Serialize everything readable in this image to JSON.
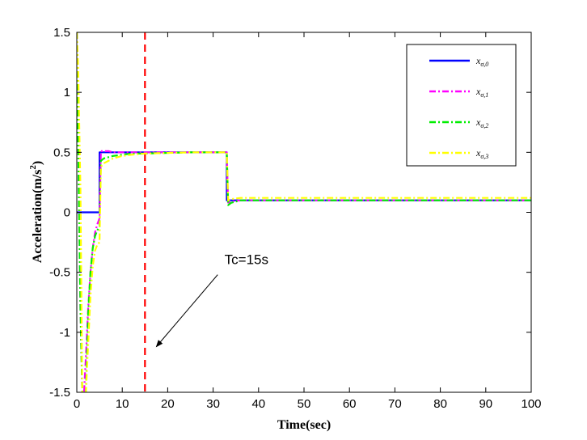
{
  "chart_data": {
    "type": "line",
    "xlabel": "Time(sec)",
    "ylabel": "Acceleration(m/s",
    "ylabel_superscript": "2",
    "ylabel_close": ")",
    "xlim": [
      0,
      100
    ],
    "ylim": [
      -1.5,
      1.5
    ],
    "x_ticks": [
      0,
      10,
      20,
      30,
      40,
      50,
      60,
      70,
      80,
      90,
      100
    ],
    "x_tick_labels": [
      "0",
      "10",
      "20",
      "30",
      "40",
      "50",
      "60",
      "70",
      "80",
      "90",
      "100"
    ],
    "y_ticks": [
      -1.5,
      -1,
      -0.5,
      0,
      0.5,
      1,
      1.5
    ],
    "y_tick_labels": [
      "-1.5",
      "-1",
      "-0.5",
      "0",
      "0.5",
      "1",
      "1.5"
    ],
    "grid": false,
    "legend_position": "top-right",
    "series": [
      {
        "name": "x",
        "subscript": "σ,0",
        "color": "#0000ff",
        "dash": "solid",
        "x": [
          0,
          5,
          5,
          33,
          33,
          100
        ],
        "y": [
          0,
          0,
          0.5,
          0.5,
          0.1,
          0.1
        ]
      },
      {
        "name": "x",
        "subscript": "σ,1",
        "color": "#ff00ff",
        "dash": "dashdot",
        "x": [
          0,
          0.3,
          0.8,
          1.2,
          1.6,
          2.0,
          2.5,
          3.0,
          3.5,
          4.0,
          4.5,
          5.0,
          5.3,
          6,
          7,
          8,
          10,
          12,
          15,
          20,
          33,
          33.3,
          34,
          36,
          40,
          100
        ],
        "y": [
          1.5,
          0.6,
          -0.8,
          -1.5,
          -1.5,
          -1.2,
          -0.8,
          -0.5,
          -0.3,
          -0.17,
          -0.1,
          -0.05,
          0.51,
          0.51,
          0.51,
          0.5,
          0.5,
          0.5,
          0.5,
          0.5,
          0.5,
          0.08,
          0.09,
          0.1,
          0.1,
          0.1
        ]
      },
      {
        "name": "x",
        "subscript": "σ,2",
        "color": "#00ee00",
        "dash": "dashdot",
        "x": [
          0,
          0.3,
          0.8,
          1.2,
          1.6,
          2.0,
          2.5,
          3.0,
          3.5,
          4.0,
          4.5,
          5.0,
          5.3,
          6,
          7,
          8,
          10,
          12,
          15,
          20,
          25,
          33,
          33.3,
          34,
          36,
          40,
          100
        ],
        "y": [
          1.5,
          0.6,
          -0.8,
          -1.5,
          -1.5,
          -1.5,
          -0.85,
          -0.5,
          -0.3,
          -0.2,
          -0.15,
          -0.12,
          0.43,
          0.45,
          0.46,
          0.47,
          0.48,
          0.49,
          0.49,
          0.495,
          0.5,
          0.5,
          0.06,
          0.08,
          0.1,
          0.1,
          0.1
        ]
      },
      {
        "name": "x",
        "subscript": "σ,3",
        "color": "#ffff00",
        "dash": "dashdot",
        "x": [
          0,
          0.3,
          0.8,
          1.2,
          1.6,
          2.0,
          2.5,
          3.0,
          3.5,
          4.0,
          4.5,
          5.0,
          5.3,
          6,
          7,
          8,
          10,
          12,
          15,
          20,
          25,
          33,
          33.3,
          34,
          36,
          40,
          100
        ],
        "y": [
          1.5,
          1.2,
          0.2,
          -1.5,
          -1.5,
          -1.5,
          -1.1,
          -0.7,
          -0.45,
          -0.32,
          -0.27,
          -0.25,
          0.38,
          0.41,
          0.43,
          0.45,
          0.47,
          0.48,
          0.49,
          0.495,
          0.5,
          0.5,
          0.1,
          0.11,
          0.12,
          0.12,
          0.12
        ]
      }
    ],
    "vertical_line": {
      "x": 15,
      "color": "#ff0000",
      "dash": "dashed"
    },
    "annotation": {
      "text": "Tc=15s",
      "text_x": 32.5,
      "text_y": -0.43,
      "arrow_from": [
        31,
        -0.52
      ],
      "arrow_to": [
        17.5,
        -1.12
      ]
    }
  }
}
